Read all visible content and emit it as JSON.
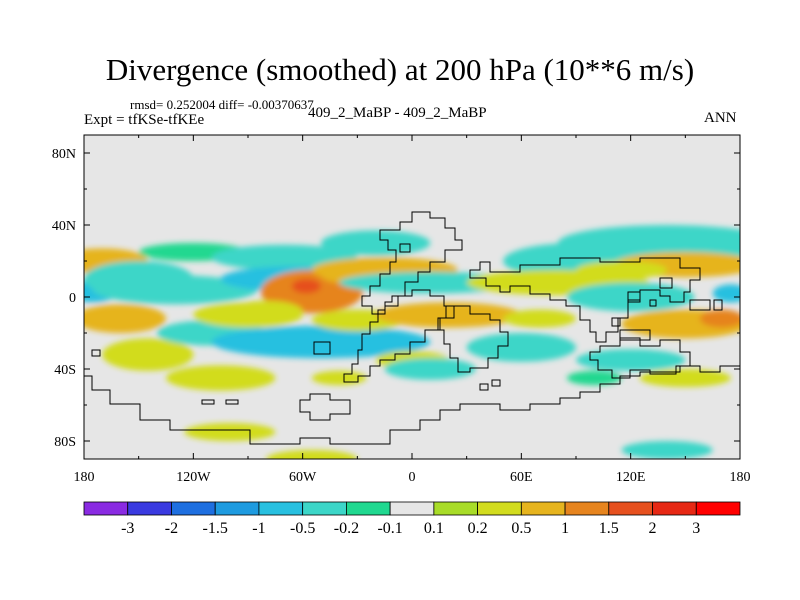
{
  "figure": {
    "title": "Divergence (smoothed) at 200 hPa (10**6 m/s)",
    "stats": "rmsd= 0.252004 diff= -0.00370637",
    "experiment": "Expt = tfKSe-tfKEe",
    "case": "409_2_MaBP - 409_2_MaBP",
    "season": "ANN"
  },
  "chart_data": {
    "type": "heatmap",
    "title": "Divergence (smoothed) at 200 hPa (10**6 m/s)",
    "xlabel": "",
    "ylabel": "",
    "xlim": [
      -180,
      180
    ],
    "ylim": [
      -90,
      90
    ],
    "x_ticks": [
      -180,
      -120,
      -60,
      0,
      60,
      120,
      180
    ],
    "x_tick_labels": [
      "180",
      "120W",
      "60W",
      "0",
      "60E",
      "120E",
      "180"
    ],
    "y_ticks": [
      80,
      40,
      0,
      -40,
      -80
    ],
    "y_tick_labels": [
      "80N",
      "40N",
      "0",
      "40S",
      "80S"
    ],
    "contour_levels": [
      -3,
      -2,
      -1.5,
      -1,
      -0.5,
      -0.2,
      -0.1,
      0.1,
      0.2,
      0.5,
      1,
      1.5,
      2,
      3
    ],
    "level_labels": [
      "-3",
      "-2",
      "-1.5",
      "-1",
      "-0.5",
      "-0.2",
      "-0.1",
      "0.1",
      "0.2",
      "0.5",
      "1",
      "1.5",
      "2",
      "3"
    ],
    "colors": [
      "#8a2be2",
      "#3a3ae0",
      "#1e6fe0",
      "#1e9be0",
      "#28c0e0",
      "#3cd6c8",
      "#20d890",
      "#e6e6e6",
      "#a8dc28",
      "#d2dc1e",
      "#e6b41e",
      "#e6841e",
      "#e6501e",
      "#e62814",
      "#ff0000"
    ],
    "anomalies": [
      {
        "lon": -170,
        "lat": 20,
        "rlon": 25,
        "rlat": 7,
        "value": 0.7
      },
      {
        "lon": -175,
        "lat": 3,
        "rlon": 14,
        "rlat": 6,
        "value": -0.8
      },
      {
        "lon": -150,
        "lat": 10,
        "rlon": 30,
        "rlat": 10,
        "value": -0.4
      },
      {
        "lon": -130,
        "lat": 4,
        "rlon": 45,
        "rlat": 8,
        "value": -0.3
      },
      {
        "lon": -160,
        "lat": -12,
        "rlon": 25,
        "rlat": 8,
        "value": 0.5
      },
      {
        "lon": -145,
        "lat": -32,
        "rlon": 25,
        "rlat": 9,
        "value": 0.3
      },
      {
        "lon": -110,
        "lat": -20,
        "rlon": 30,
        "rlat": 7,
        "value": -0.3
      },
      {
        "lon": -90,
        "lat": -10,
        "rlon": 30,
        "rlat": 7,
        "value": 0.2
      },
      {
        "lon": -105,
        "lat": -45,
        "rlon": 30,
        "rlat": 7,
        "value": 0.2
      },
      {
        "lon": -100,
        "lat": -75,
        "rlon": 25,
        "rlat": 5,
        "value": 0.3
      },
      {
        "lon": -120,
        "lat": 25,
        "rlon": 30,
        "rlat": 5,
        "value": -0.2
      },
      {
        "lon": -70,
        "lat": 22,
        "rlon": 40,
        "rlat": 7,
        "value": -0.5
      },
      {
        "lon": -65,
        "lat": 10,
        "rlon": 40,
        "rlat": 7,
        "value": -0.6
      },
      {
        "lon": -55,
        "lat": 3,
        "rlon": 28,
        "rlat": 12,
        "value": 1.0
      },
      {
        "lon": -58,
        "lat": 6,
        "rlon": 8,
        "rlat": 4,
        "value": 1.6
      },
      {
        "lon": -80,
        "lat": -8,
        "rlon": 20,
        "rlat": 6,
        "value": 0.3
      },
      {
        "lon": -50,
        "lat": -25,
        "rlon": 60,
        "rlat": 9,
        "value": -0.6
      },
      {
        "lon": -30,
        "lat": -13,
        "rlon": 25,
        "rlat": 6,
        "value": 0.3
      },
      {
        "lon": -40,
        "lat": -45,
        "rlon": 15,
        "rlat": 4,
        "value": 0.2
      },
      {
        "lon": -55,
        "lat": -90,
        "rlon": 25,
        "rlat": 5,
        "value": 0.2
      },
      {
        "lon": -20,
        "lat": 30,
        "rlon": 30,
        "rlat": 7,
        "value": -0.3
      },
      {
        "lon": -15,
        "lat": 15,
        "rlon": 40,
        "rlat": 7,
        "value": 0.6
      },
      {
        "lon": -30,
        "lat": 12,
        "rlon": 20,
        "rlat": 5,
        "value": 0.9
      },
      {
        "lon": 10,
        "lat": 8,
        "rlon": 50,
        "rlat": 6,
        "value": -0.3
      },
      {
        "lon": 20,
        "lat": -10,
        "rlon": 40,
        "rlat": 7,
        "value": 0.5
      },
      {
        "lon": 0,
        "lat": -35,
        "rlon": 20,
        "rlat": 5,
        "value": 0.2
      },
      {
        "lon": 10,
        "lat": -40,
        "rlon": 25,
        "rlat": 6,
        "value": -0.3
      },
      {
        "lon": 60,
        "lat": -28,
        "rlon": 30,
        "rlat": 8,
        "value": -0.4
      },
      {
        "lon": 70,
        "lat": -12,
        "rlon": 20,
        "rlat": 5,
        "value": 0.2
      },
      {
        "lon": 90,
        "lat": 20,
        "rlon": 40,
        "rlat": 10,
        "value": -0.4
      },
      {
        "lon": 140,
        "lat": 30,
        "rlon": 60,
        "rlat": 10,
        "value": -0.4
      },
      {
        "lon": 150,
        "lat": 18,
        "rlon": 40,
        "rlat": 7,
        "value": 0.5
      },
      {
        "lon": 115,
        "lat": 15,
        "rlon": 25,
        "rlat": 5,
        "value": 0.4
      },
      {
        "lon": 80,
        "lat": 8,
        "rlon": 50,
        "rlat": 7,
        "value": 0.3
      },
      {
        "lon": 120,
        "lat": 0,
        "rlon": 35,
        "rlat": 8,
        "value": -0.5
      },
      {
        "lon": 150,
        "lat": -15,
        "rlon": 35,
        "rlat": 8,
        "value": 0.5
      },
      {
        "lon": 170,
        "lat": -12,
        "rlon": 12,
        "rlat": 5,
        "value": 1.0
      },
      {
        "lon": 175,
        "lat": 2,
        "rlon": 10,
        "rlat": 5,
        "value": -1.0
      },
      {
        "lon": 120,
        "lat": -35,
        "rlon": 30,
        "rlat": 6,
        "value": -0.3
      },
      {
        "lon": 150,
        "lat": -45,
        "rlon": 25,
        "rlat": 5,
        "value": 0.2
      },
      {
        "lon": 140,
        "lat": -85,
        "rlon": 25,
        "rlat": 5,
        "value": -0.3
      },
      {
        "lon": 100,
        "lat": -45,
        "rlon": 15,
        "rlat": 4,
        "value": -0.2
      }
    ]
  }
}
